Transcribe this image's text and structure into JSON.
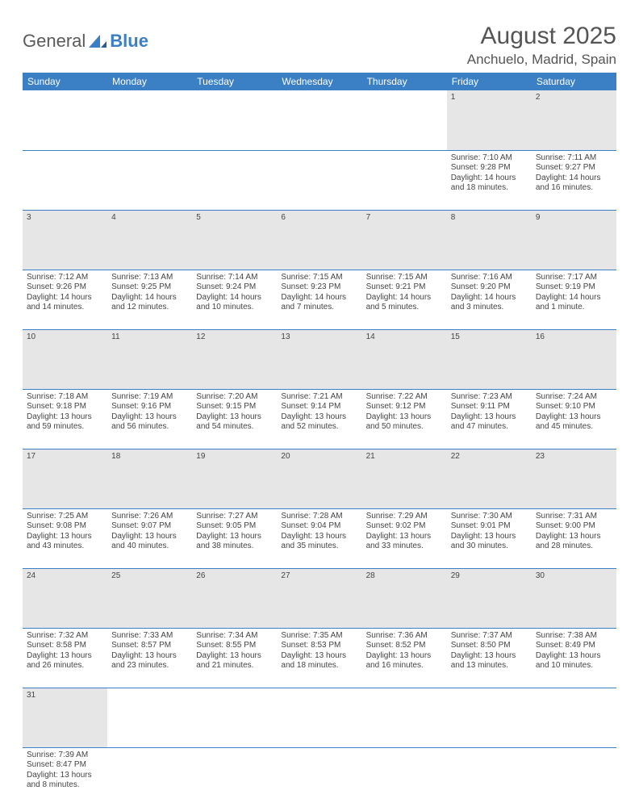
{
  "logo": {
    "text1": "General",
    "text2": "Blue"
  },
  "title": "August 2025",
  "location": "Anchuelo, Madrid, Spain",
  "colors": {
    "header_bg": "#3b7fc4",
    "daynum_bg": "#e6e6e6",
    "rule": "#3b7fc4",
    "text": "#444444"
  },
  "day_headers": [
    "Sunday",
    "Monday",
    "Tuesday",
    "Wednesday",
    "Thursday",
    "Friday",
    "Saturday"
  ],
  "weeks": [
    [
      null,
      null,
      null,
      null,
      null,
      {
        "n": "1",
        "sr": "Sunrise: 7:10 AM",
        "ss": "Sunset: 9:28 PM",
        "dl": "Daylight: 14 hours and 18 minutes."
      },
      {
        "n": "2",
        "sr": "Sunrise: 7:11 AM",
        "ss": "Sunset: 9:27 PM",
        "dl": "Daylight: 14 hours and 16 minutes."
      }
    ],
    [
      {
        "n": "3",
        "sr": "Sunrise: 7:12 AM",
        "ss": "Sunset: 9:26 PM",
        "dl": "Daylight: 14 hours and 14 minutes."
      },
      {
        "n": "4",
        "sr": "Sunrise: 7:13 AM",
        "ss": "Sunset: 9:25 PM",
        "dl": "Daylight: 14 hours and 12 minutes."
      },
      {
        "n": "5",
        "sr": "Sunrise: 7:14 AM",
        "ss": "Sunset: 9:24 PM",
        "dl": "Daylight: 14 hours and 10 minutes."
      },
      {
        "n": "6",
        "sr": "Sunrise: 7:15 AM",
        "ss": "Sunset: 9:23 PM",
        "dl": "Daylight: 14 hours and 7 minutes."
      },
      {
        "n": "7",
        "sr": "Sunrise: 7:15 AM",
        "ss": "Sunset: 9:21 PM",
        "dl": "Daylight: 14 hours and 5 minutes."
      },
      {
        "n": "8",
        "sr": "Sunrise: 7:16 AM",
        "ss": "Sunset: 9:20 PM",
        "dl": "Daylight: 14 hours and 3 minutes."
      },
      {
        "n": "9",
        "sr": "Sunrise: 7:17 AM",
        "ss": "Sunset: 9:19 PM",
        "dl": "Daylight: 14 hours and 1 minute."
      }
    ],
    [
      {
        "n": "10",
        "sr": "Sunrise: 7:18 AM",
        "ss": "Sunset: 9:18 PM",
        "dl": "Daylight: 13 hours and 59 minutes."
      },
      {
        "n": "11",
        "sr": "Sunrise: 7:19 AM",
        "ss": "Sunset: 9:16 PM",
        "dl": "Daylight: 13 hours and 56 minutes."
      },
      {
        "n": "12",
        "sr": "Sunrise: 7:20 AM",
        "ss": "Sunset: 9:15 PM",
        "dl": "Daylight: 13 hours and 54 minutes."
      },
      {
        "n": "13",
        "sr": "Sunrise: 7:21 AM",
        "ss": "Sunset: 9:14 PM",
        "dl": "Daylight: 13 hours and 52 minutes."
      },
      {
        "n": "14",
        "sr": "Sunrise: 7:22 AM",
        "ss": "Sunset: 9:12 PM",
        "dl": "Daylight: 13 hours and 50 minutes."
      },
      {
        "n": "15",
        "sr": "Sunrise: 7:23 AM",
        "ss": "Sunset: 9:11 PM",
        "dl": "Daylight: 13 hours and 47 minutes."
      },
      {
        "n": "16",
        "sr": "Sunrise: 7:24 AM",
        "ss": "Sunset: 9:10 PM",
        "dl": "Daylight: 13 hours and 45 minutes."
      }
    ],
    [
      {
        "n": "17",
        "sr": "Sunrise: 7:25 AM",
        "ss": "Sunset: 9:08 PM",
        "dl": "Daylight: 13 hours and 43 minutes."
      },
      {
        "n": "18",
        "sr": "Sunrise: 7:26 AM",
        "ss": "Sunset: 9:07 PM",
        "dl": "Daylight: 13 hours and 40 minutes."
      },
      {
        "n": "19",
        "sr": "Sunrise: 7:27 AM",
        "ss": "Sunset: 9:05 PM",
        "dl": "Daylight: 13 hours and 38 minutes."
      },
      {
        "n": "20",
        "sr": "Sunrise: 7:28 AM",
        "ss": "Sunset: 9:04 PM",
        "dl": "Daylight: 13 hours and 35 minutes."
      },
      {
        "n": "21",
        "sr": "Sunrise: 7:29 AM",
        "ss": "Sunset: 9:02 PM",
        "dl": "Daylight: 13 hours and 33 minutes."
      },
      {
        "n": "22",
        "sr": "Sunrise: 7:30 AM",
        "ss": "Sunset: 9:01 PM",
        "dl": "Daylight: 13 hours and 30 minutes."
      },
      {
        "n": "23",
        "sr": "Sunrise: 7:31 AM",
        "ss": "Sunset: 9:00 PM",
        "dl": "Daylight: 13 hours and 28 minutes."
      }
    ],
    [
      {
        "n": "24",
        "sr": "Sunrise: 7:32 AM",
        "ss": "Sunset: 8:58 PM",
        "dl": "Daylight: 13 hours and 26 minutes."
      },
      {
        "n": "25",
        "sr": "Sunrise: 7:33 AM",
        "ss": "Sunset: 8:57 PM",
        "dl": "Daylight: 13 hours and 23 minutes."
      },
      {
        "n": "26",
        "sr": "Sunrise: 7:34 AM",
        "ss": "Sunset: 8:55 PM",
        "dl": "Daylight: 13 hours and 21 minutes."
      },
      {
        "n": "27",
        "sr": "Sunrise: 7:35 AM",
        "ss": "Sunset: 8:53 PM",
        "dl": "Daylight: 13 hours and 18 minutes."
      },
      {
        "n": "28",
        "sr": "Sunrise: 7:36 AM",
        "ss": "Sunset: 8:52 PM",
        "dl": "Daylight: 13 hours and 16 minutes."
      },
      {
        "n": "29",
        "sr": "Sunrise: 7:37 AM",
        "ss": "Sunset: 8:50 PM",
        "dl": "Daylight: 13 hours and 13 minutes."
      },
      {
        "n": "30",
        "sr": "Sunrise: 7:38 AM",
        "ss": "Sunset: 8:49 PM",
        "dl": "Daylight: 13 hours and 10 minutes."
      }
    ],
    [
      {
        "n": "31",
        "sr": "Sunrise: 7:39 AM",
        "ss": "Sunset: 8:47 PM",
        "dl": "Daylight: 13 hours and 8 minutes."
      },
      null,
      null,
      null,
      null,
      null,
      null
    ]
  ]
}
